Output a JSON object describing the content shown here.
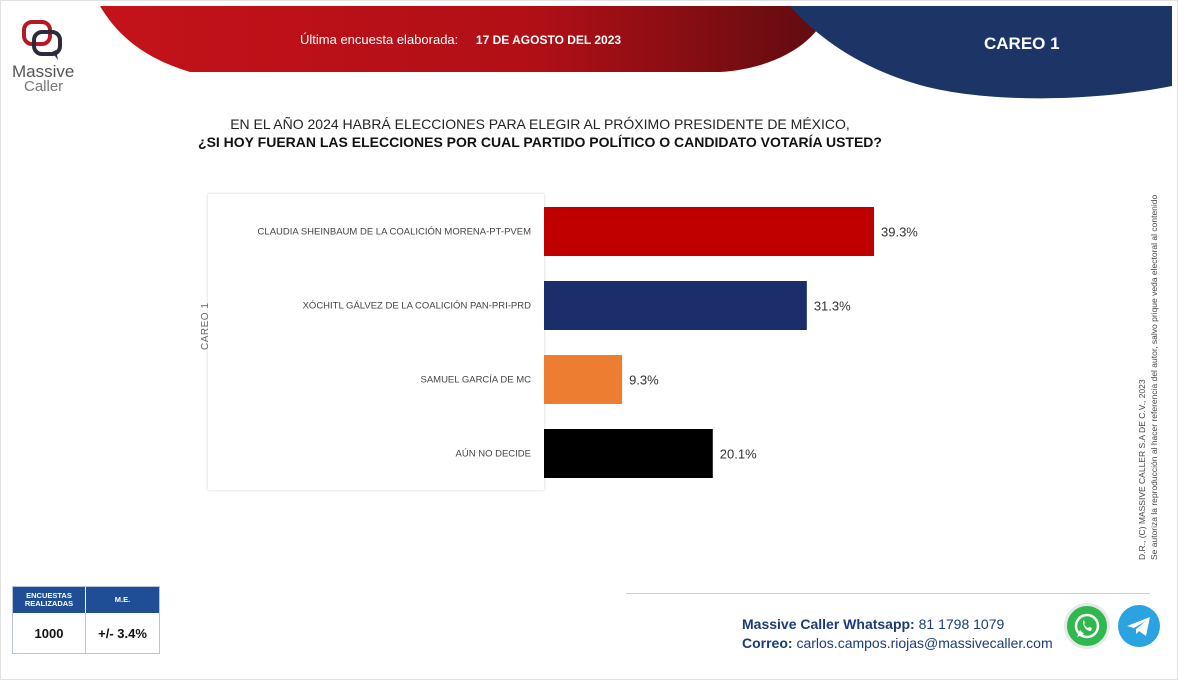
{
  "brand": {
    "line1": "Massive",
    "line2": "Caller"
  },
  "header": {
    "survey_label": "Última encuesta elaborada:",
    "survey_date": "17 DE AGOSTO DEL 2023",
    "careo": "CAREO 1"
  },
  "question": {
    "line1": "EN EL AÑO 2024 HABRÁ ELECCIONES PARA ELEGIR AL PRÓXIMO PRESIDENTE DE MÉXICO,",
    "line2": "¿SI HOY FUERAN LAS ELECCIONES POR CUAL PARTIDO POLÍTICO O CANDIDATO VOTARÍA USTED?"
  },
  "chart_data": {
    "type": "bar",
    "orientation": "horizontal",
    "axis_label": "CAREO 1",
    "categories": [
      "CLAUDIA SHEINBAUM DE LA COALICIÓN MORENA-PT-PVEM",
      "XÓCHITL GÁLVEZ DE LA COALICIÓN PAN-PRI-PRD",
      "SAMUEL GARCÍA DE MC",
      "AÚN NO DECIDE"
    ],
    "values": [
      39.3,
      31.3,
      9.3,
      20.1
    ],
    "value_labels": [
      "39.3%",
      "31.3%",
      "9.3%",
      "20.1%"
    ],
    "colors": [
      "#c00000",
      "#1b2e6b",
      "#ed7d31",
      "#000000"
    ],
    "xlim": [
      0,
      45
    ],
    "grid": false,
    "legend": "none"
  },
  "legal": {
    "line1": "D.R., (C) MASSIVE CALLER S.A DE C.V., 2023",
    "line2": "Se autoriza la reproducción al hacer referencia del autor, salvo prique veda electoral al contenido"
  },
  "stats": {
    "h1": "ENCUESTAS REALIZADAS",
    "h2": "M.E.",
    "v1": "1000",
    "v2": "+/- 3.4%"
  },
  "contact": {
    "wa_label": "Massive Caller Whatsapp:",
    "wa_number": "81 1798 1079",
    "mail_label": "Correo:",
    "mail": "carlos.campos.riojas@massivecaller.com"
  },
  "icons": [
    "massive-caller-logo-icon",
    "whatsapp-icon",
    "telegram-icon"
  ]
}
